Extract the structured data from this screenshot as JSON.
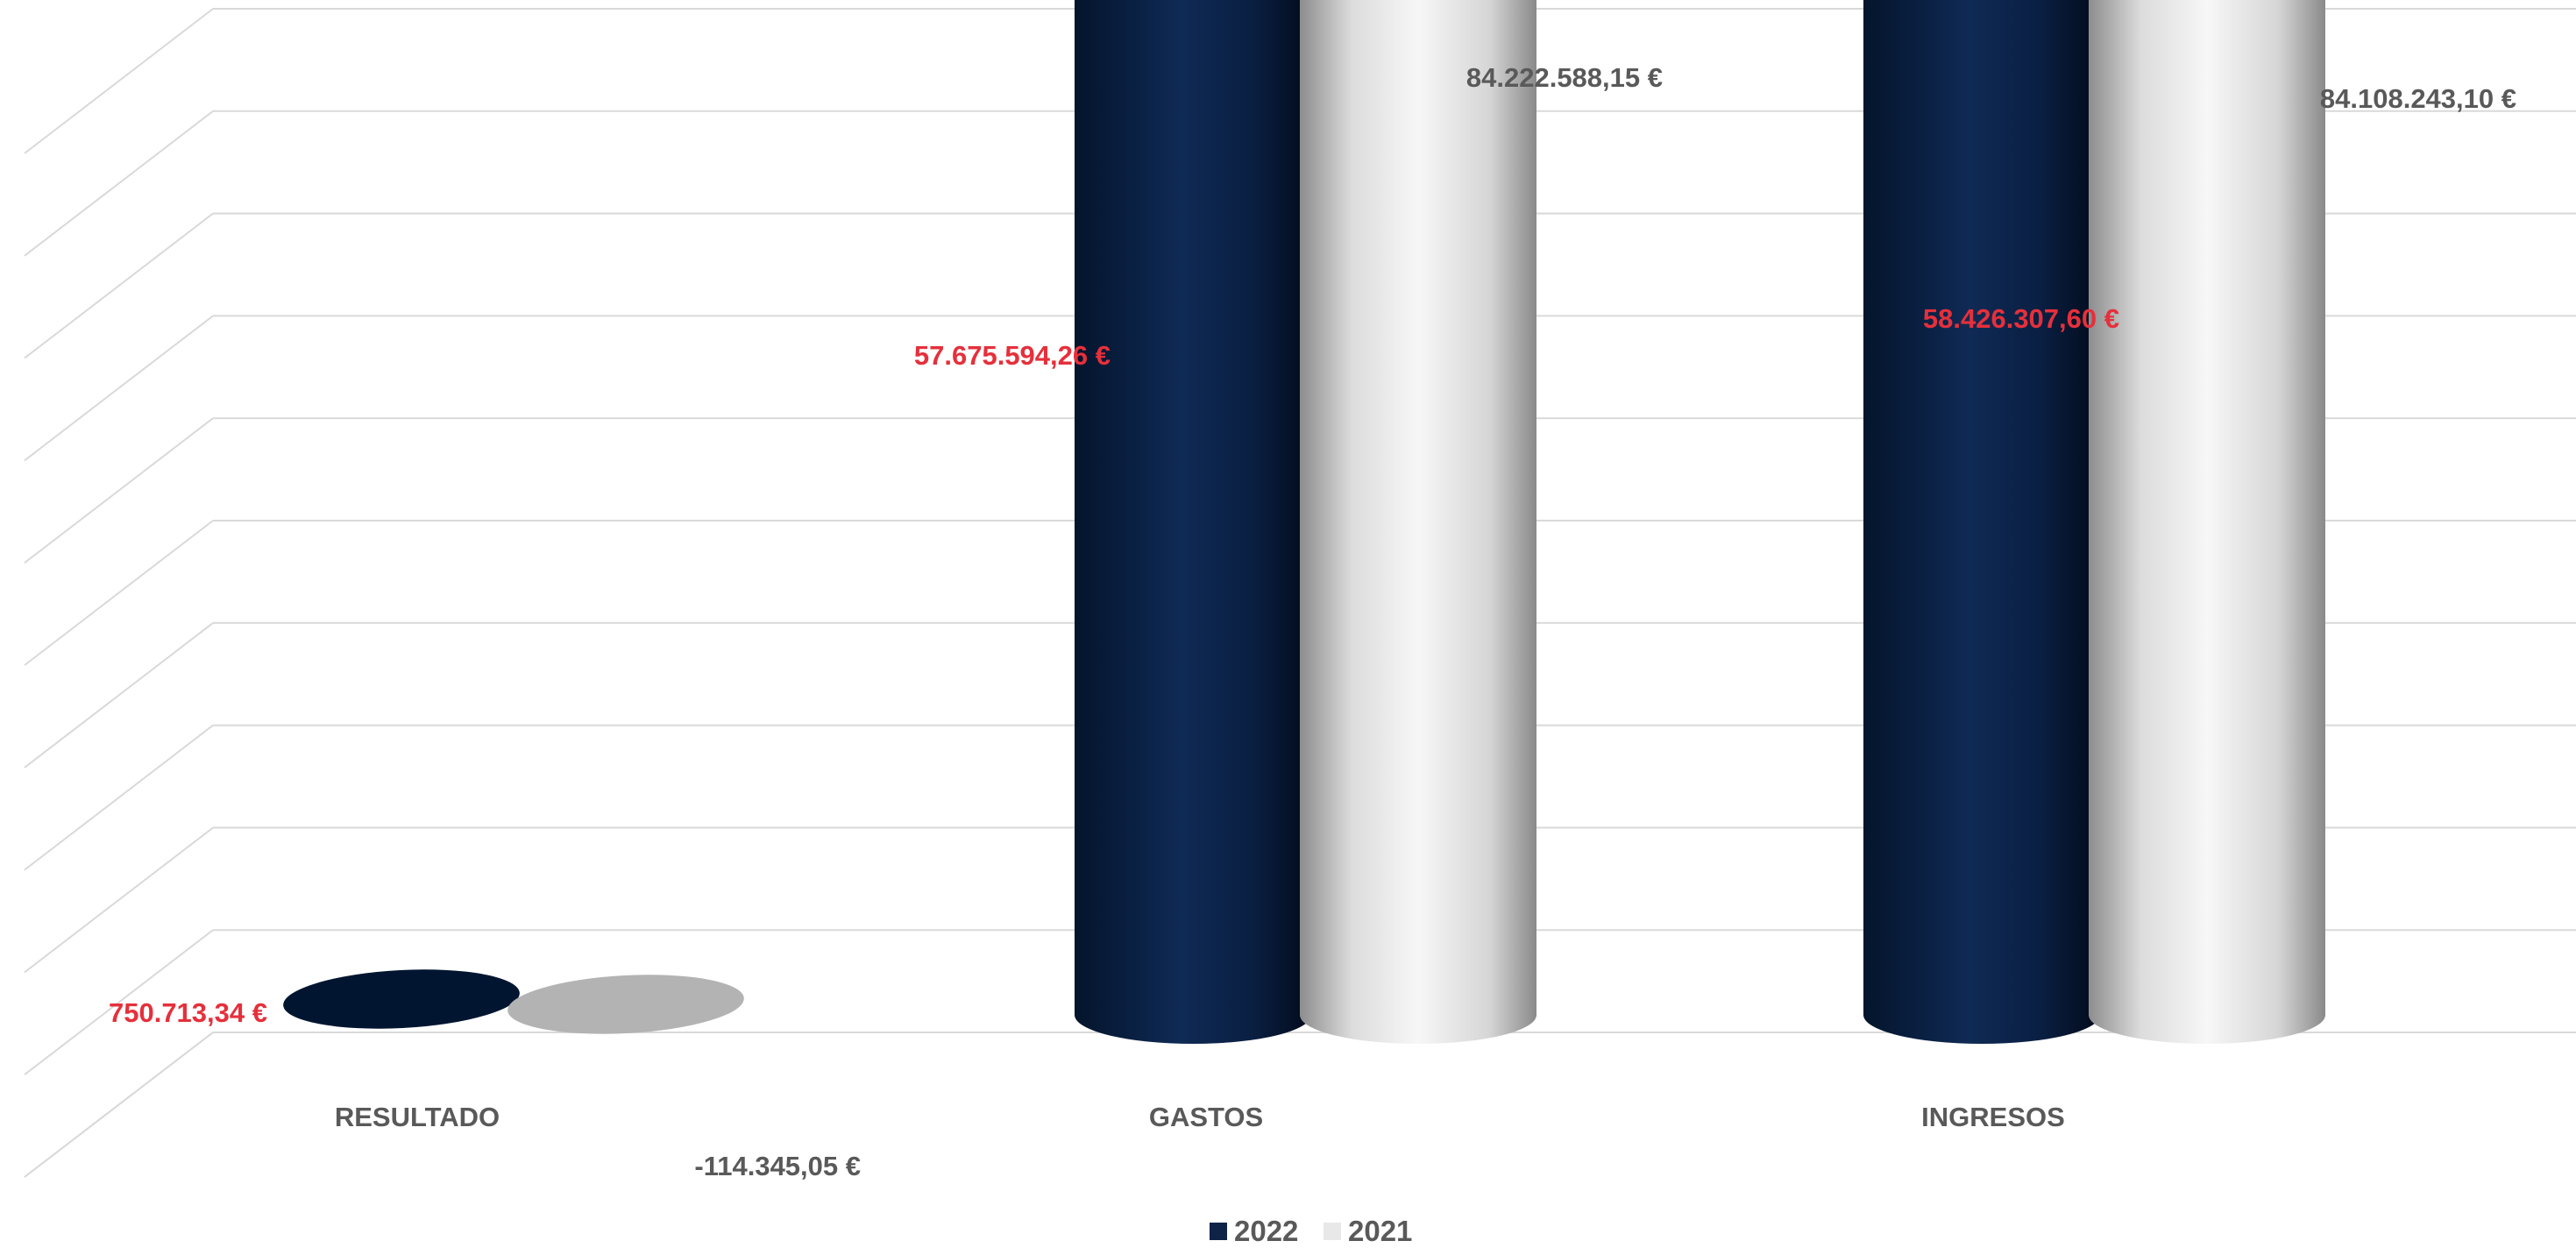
{
  "chart_data": {
    "type": "bar",
    "subtype": "3d-cylinder",
    "title": "",
    "xlabel": "",
    "ylabel": "",
    "grid": true,
    "legend_position": "bottom",
    "categories": [
      "RESULTADO",
      "GASTOS",
      "INGRESOS"
    ],
    "ylim": [
      0,
      90000000
    ],
    "series": [
      {
        "name": "2022",
        "color": "#0d2448",
        "label_color": "#e5303b",
        "values": [
          750713.34,
          57675594.26,
          58426307.6
        ],
        "labels": [
          "750.713,34 €",
          "57.675.594,26 €",
          "58.426.307,60 €"
        ]
      },
      {
        "name": "2021",
        "color": "#e8e8e8",
        "label_color": "#595959",
        "values": [
          -114345.05,
          84222588.15,
          84108243.1
        ],
        "labels": [
          "-114.345,05 €",
          "84.222.588,15 €",
          "84.108.243,10 €"
        ]
      }
    ]
  }
}
